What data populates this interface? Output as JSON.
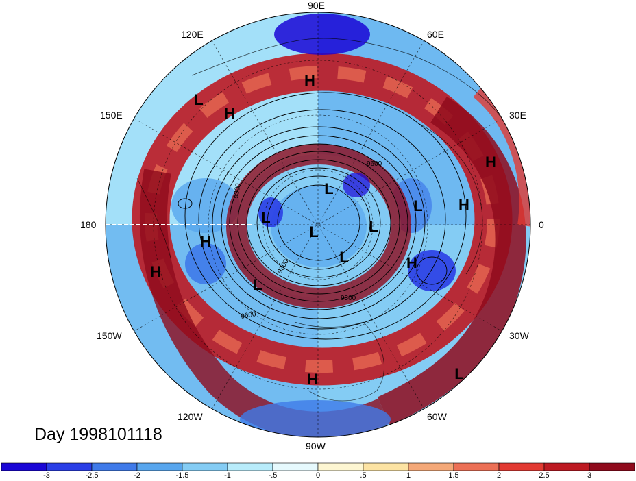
{
  "title": "Day 1998101118",
  "longitude_labels": {
    "e90": "90E",
    "e60": "60E",
    "e120": "120E",
    "e30": "30E",
    "e150": "150E",
    "e0": "0",
    "e180": "180",
    "w30": "30W",
    "w150": "150W",
    "w60": "60W",
    "w120": "120W",
    "w90": "90W"
  },
  "centers": [
    {
      "letter": "H",
      "where": "siberia"
    },
    {
      "letter": "L",
      "where": "far-east"
    },
    {
      "letter": "H",
      "where": "east-asia"
    },
    {
      "letter": "H",
      "where": "north-africa"
    },
    {
      "letter": "H",
      "where": "middle-east"
    },
    {
      "letter": "L",
      "where": "scandinavia"
    },
    {
      "letter": "L",
      "where": "polar-top"
    },
    {
      "letter": "L",
      "where": "pole"
    },
    {
      "letter": "L",
      "where": "europe-arctic"
    },
    {
      "letter": "L",
      "where": "siberia-arctic"
    },
    {
      "letter": "L",
      "where": "greenland"
    },
    {
      "letter": "H",
      "where": "north-pacific"
    },
    {
      "letter": "H",
      "where": "central-pacific"
    },
    {
      "letter": "L",
      "where": "gulf-of-alaska"
    },
    {
      "letter": "H",
      "where": "atlantic"
    },
    {
      "letter": "H",
      "where": "north-america"
    },
    {
      "letter": "L",
      "where": "south-atlantic"
    }
  ],
  "contour_labels": [
    "9300",
    "9600",
    "9300",
    "9600",
    "9300"
  ],
  "colorbar": {
    "ticks": [
      "-3",
      "-2.5",
      "-2",
      "-1.5",
      "-1",
      "-.5",
      "0",
      ".5",
      "1",
      "1.5",
      "2",
      "2.5",
      "3"
    ],
    "colors": [
      "#1a06d6",
      "#2a3ee6",
      "#3f7ae9",
      "#58a6ee",
      "#84ccf4",
      "#b8ecfb",
      "#e6f9fd",
      "#fdf6d2",
      "#fce3a3",
      "#f4a878",
      "#ec7056",
      "#e23a32",
      "#bd1a22",
      "#8f0a1c"
    ]
  }
}
